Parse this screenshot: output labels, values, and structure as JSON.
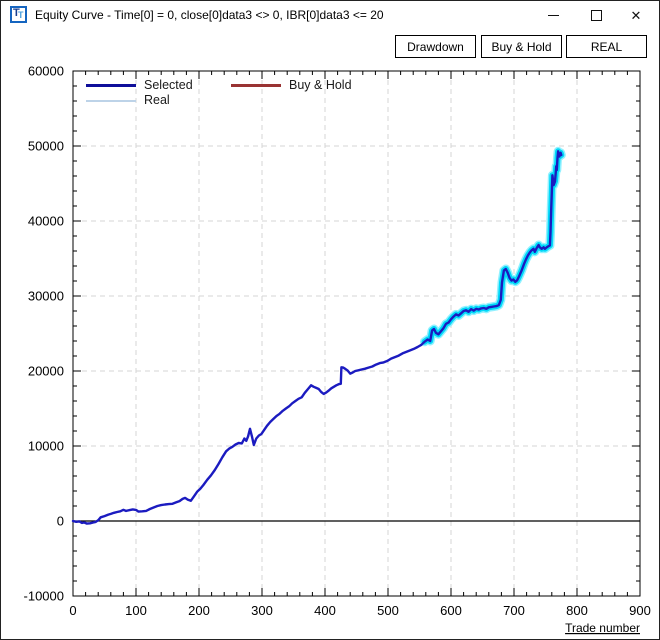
{
  "window": {
    "title": "Equity Curve - Time[0] = 0, close[0]data3 <> 0, IBR[0]data3 <= 20",
    "icon_letters": {
      "big": "T",
      "small": "T"
    },
    "caption": {
      "close_glyph": "✕"
    }
  },
  "toolbar": {
    "drawdown_label": "Drawdown",
    "buyhold_label": "Buy & Hold",
    "real_label": "REAL"
  },
  "legend": {
    "selected": {
      "label": "Selected",
      "color": "#0f0f9a"
    },
    "buyhold": {
      "label": "Buy & Hold",
      "color": "#993333"
    },
    "real": {
      "label": "Real",
      "color": "#bdd3e8"
    }
  },
  "colors": {
    "selected_line": "#1b1bc0",
    "real_glow_outer": "#7feeff",
    "real_glow_inner": "#00d9f9",
    "grid": "#d6d6d6",
    "axis": "#000000"
  },
  "chart_data": {
    "type": "line",
    "title": "",
    "xlabel": "Trade number",
    "ylabel": "",
    "x_range": [
      0,
      900
    ],
    "x_major": 100,
    "x_minor": 20,
    "y_range": [
      -10000,
      60000
    ],
    "y_major": 10000,
    "y_minor": 2000,
    "grid": "dashed",
    "zero_line": true,
    "legend_position": "top-left",
    "real_overlay_start_trade": 556,
    "series": [
      {
        "name": "Selected",
        "points": [
          [
            0,
            0
          ],
          [
            5,
            -100
          ],
          [
            10,
            -50
          ],
          [
            14,
            -250
          ],
          [
            18,
            -200
          ],
          [
            22,
            -350
          ],
          [
            27,
            -300
          ],
          [
            32,
            -200
          ],
          [
            36,
            -120
          ],
          [
            40,
            100
          ],
          [
            44,
            500
          ],
          [
            50,
            650
          ],
          [
            56,
            850
          ],
          [
            60,
            950
          ],
          [
            65,
            1100
          ],
          [
            70,
            1200
          ],
          [
            75,
            1300
          ],
          [
            80,
            1500
          ],
          [
            84,
            1350
          ],
          [
            90,
            1450
          ],
          [
            95,
            1550
          ],
          [
            100,
            1480
          ],
          [
            104,
            1250
          ],
          [
            110,
            1300
          ],
          [
            116,
            1350
          ],
          [
            122,
            1600
          ],
          [
            128,
            1800
          ],
          [
            134,
            2000
          ],
          [
            140,
            2120
          ],
          [
            146,
            2200
          ],
          [
            152,
            2250
          ],
          [
            158,
            2300
          ],
          [
            164,
            2500
          ],
          [
            169,
            2650
          ],
          [
            174,
            2950
          ],
          [
            178,
            3080
          ],
          [
            182,
            2850
          ],
          [
            187,
            2700
          ],
          [
            192,
            3300
          ],
          [
            197,
            3900
          ],
          [
            202,
            4300
          ],
          [
            207,
            4800
          ],
          [
            213,
            5500
          ],
          [
            219,
            6100
          ],
          [
            225,
            6800
          ],
          [
            231,
            7600
          ],
          [
            237,
            8500
          ],
          [
            243,
            9300
          ],
          [
            248,
            9650
          ],
          [
            253,
            9900
          ],
          [
            258,
            10200
          ],
          [
            263,
            10400
          ],
          [
            268,
            10350
          ],
          [
            272,
            11000
          ],
          [
            275,
            10700
          ],
          [
            278,
            11300
          ],
          [
            281,
            12300
          ],
          [
            284,
            11300
          ],
          [
            287,
            10150
          ],
          [
            291,
            11000
          ],
          [
            295,
            11400
          ],
          [
            299,
            11600
          ],
          [
            303,
            12100
          ],
          [
            308,
            12700
          ],
          [
            313,
            13200
          ],
          [
            318,
            13600
          ],
          [
            323,
            14000
          ],
          [
            328,
            14300
          ],
          [
            333,
            14700
          ],
          [
            338,
            15000
          ],
          [
            343,
            15300
          ],
          [
            348,
            15700
          ],
          [
            353,
            16000
          ],
          [
            358,
            16300
          ],
          [
            363,
            16500
          ],
          [
            368,
            17100
          ],
          [
            373,
            17600
          ],
          [
            378,
            18100
          ],
          [
            382,
            17900
          ],
          [
            386,
            17750
          ],
          [
            390,
            17600
          ],
          [
            394,
            17200
          ],
          [
            398,
            16950
          ],
          [
            402,
            17150
          ],
          [
            406,
            17400
          ],
          [
            410,
            17700
          ],
          [
            414,
            17900
          ],
          [
            418,
            18100
          ],
          [
            422,
            18250
          ],
          [
            425,
            18300
          ],
          [
            426,
            20500
          ],
          [
            429,
            20450
          ],
          [
            432,
            20300
          ],
          [
            436,
            20050
          ],
          [
            440,
            19650
          ],
          [
            444,
            19800
          ],
          [
            448,
            20000
          ],
          [
            453,
            20100
          ],
          [
            458,
            20200
          ],
          [
            463,
            20300
          ],
          [
            469,
            20450
          ],
          [
            475,
            20600
          ],
          [
            481,
            20850
          ],
          [
            487,
            21050
          ],
          [
            493,
            21150
          ],
          [
            499,
            21350
          ],
          [
            505,
            21650
          ],
          [
            511,
            21850
          ],
          [
            517,
            22050
          ],
          [
            523,
            22350
          ],
          [
            529,
            22550
          ],
          [
            535,
            22750
          ],
          [
            541,
            22950
          ],
          [
            547,
            23200
          ],
          [
            553,
            23500
          ],
          [
            558,
            23900
          ],
          [
            563,
            24200
          ],
          [
            567,
            24000
          ],
          [
            570,
            25400
          ],
          [
            573,
            25600
          ],
          [
            576,
            25100
          ],
          [
            580,
            24900
          ],
          [
            584,
            25300
          ],
          [
            588,
            25700
          ],
          [
            592,
            26300
          ],
          [
            596,
            26450
          ],
          [
            600,
            26900
          ],
          [
            604,
            27250
          ],
          [
            608,
            27550
          ],
          [
            612,
            27400
          ],
          [
            616,
            27700
          ],
          [
            620,
            28000
          ],
          [
            624,
            28100
          ],
          [
            628,
            27900
          ],
          [
            632,
            28250
          ],
          [
            636,
            28050
          ],
          [
            640,
            28300
          ],
          [
            644,
            28200
          ],
          [
            648,
            28350
          ],
          [
            652,
            28400
          ],
          [
            656,
            28300
          ],
          [
            660,
            28500
          ],
          [
            664,
            28550
          ],
          [
            668,
            28600
          ],
          [
            672,
            28650
          ],
          [
            676,
            28800
          ],
          [
            679,
            29500
          ],
          [
            681,
            31800
          ],
          [
            684,
            33400
          ],
          [
            687,
            33600
          ],
          [
            690,
            33100
          ],
          [
            693,
            32400
          ],
          [
            696,
            32050
          ],
          [
            699,
            32200
          ],
          [
            702,
            31900
          ],
          [
            705,
            32100
          ],
          [
            708,
            32600
          ],
          [
            712,
            33400
          ],
          [
            716,
            34300
          ],
          [
            719,
            34900
          ],
          [
            722,
            35400
          ],
          [
            725,
            35800
          ],
          [
            728,
            36100
          ],
          [
            731,
            36300
          ],
          [
            733,
            35900
          ],
          [
            736,
            36400
          ],
          [
            739,
            36800
          ],
          [
            741,
            36500
          ],
          [
            744,
            36300
          ],
          [
            747,
            36500
          ],
          [
            749,
            36300
          ],
          [
            752,
            36500
          ],
          [
            755,
            36650
          ],
          [
            757,
            36750
          ],
          [
            758,
            38500
          ],
          [
            759,
            41500
          ],
          [
            760,
            43800
          ],
          [
            761,
            46100
          ],
          [
            762,
            45400
          ],
          [
            763,
            44800
          ],
          [
            765,
            45300
          ],
          [
            766,
            46200
          ],
          [
            767,
            47300
          ],
          [
            768,
            46800
          ],
          [
            769,
            48400
          ],
          [
            770,
            49300
          ],
          [
            771,
            48900
          ],
          [
            772,
            48600
          ],
          [
            773,
            48900
          ],
          [
            774,
            49100
          ],
          [
            775,
            48800
          ]
        ]
      }
    ]
  }
}
